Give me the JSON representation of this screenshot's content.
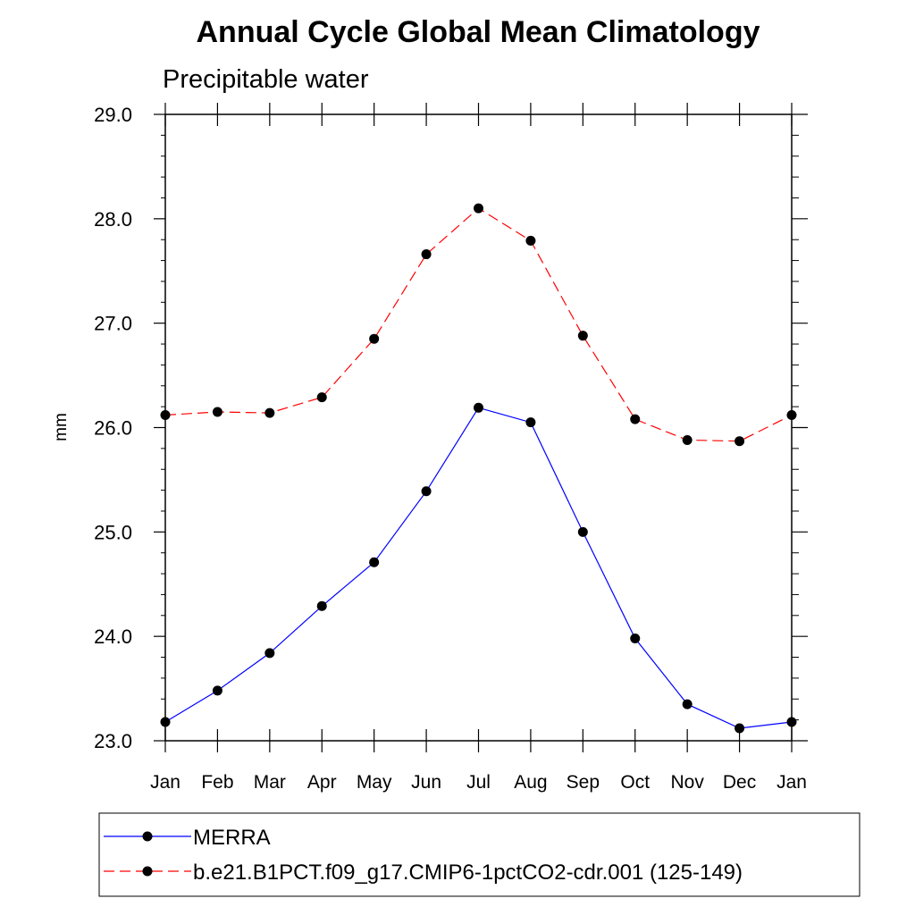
{
  "chart_data": {
    "type": "line",
    "title": "Annual Cycle Global Mean Climatology",
    "subtitle": "Precipitable water",
    "ylabel": "mm",
    "xlabel": "",
    "categories": [
      "Jan",
      "Feb",
      "Mar",
      "Apr",
      "May",
      "Jun",
      "Jul",
      "Aug",
      "Sep",
      "Oct",
      "Nov",
      "Dec",
      "Jan"
    ],
    "ylim": [
      23.0,
      29.0
    ],
    "yticks": [
      "23.0",
      "24.0",
      "25.0",
      "26.0",
      "27.0",
      "28.0",
      "29.0"
    ],
    "grid": false,
    "legend_placement": "bottom",
    "series": [
      {
        "name": "MERRA",
        "color": "#0000ff",
        "line_style": "solid",
        "marker": "filled-circle",
        "values": [
          23.18,
          23.48,
          23.84,
          24.29,
          24.71,
          25.39,
          26.19,
          26.05,
          25.0,
          23.98,
          23.35,
          23.12,
          23.18
        ]
      },
      {
        "name": "b.e21.B1PCT.f09_g17.CMIP6-1pctCO2-cdr.001 (125-149)",
        "color": "#ff0000",
        "line_style": "dashed",
        "marker": "filled-circle",
        "values": [
          26.12,
          26.15,
          26.14,
          26.29,
          26.85,
          27.66,
          28.1,
          27.79,
          26.88,
          26.08,
          25.88,
          25.87,
          26.12
        ]
      }
    ]
  }
}
